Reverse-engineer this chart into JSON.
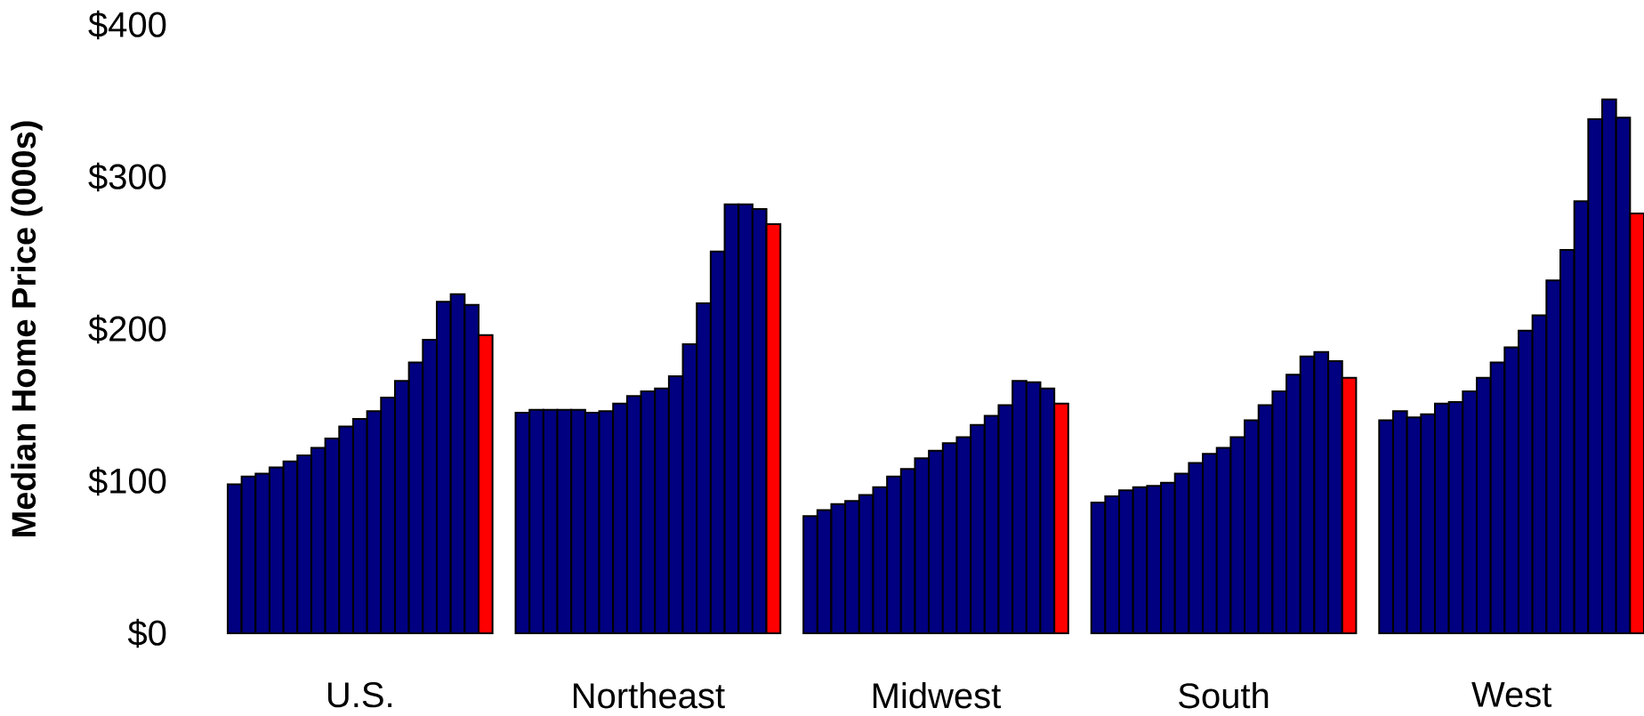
{
  "chart_data": {
    "type": "bar",
    "ylabel": "Median Home Price (000s)",
    "categories": [
      "U.S.",
      "Northeast",
      "Midwest",
      "South",
      "West"
    ],
    "ylim": [
      0,
      400
    ],
    "yticks": [
      {
        "value": 0,
        "label": "$0"
      },
      {
        "value": 100,
        "label": "$100"
      },
      {
        "value": 200,
        "label": "$200"
      },
      {
        "value": 300,
        "label": "$300"
      },
      {
        "value": 400,
        "label": "$400"
      }
    ],
    "series": [
      {
        "color": "#000080",
        "values": [
          98,
          145,
          77,
          86,
          140
        ]
      },
      {
        "color": "#000080",
        "values": [
          103,
          147,
          81,
          90,
          146
        ]
      },
      {
        "color": "#000080",
        "values": [
          105,
          147,
          85,
          94,
          142
        ]
      },
      {
        "color": "#000080",
        "values": [
          109,
          147,
          87,
          96,
          144
        ]
      },
      {
        "color": "#000080",
        "values": [
          113,
          147,
          91,
          97,
          151
        ]
      },
      {
        "color": "#000080",
        "values": [
          117,
          145,
          96,
          99,
          152
        ]
      },
      {
        "color": "#000080",
        "values": [
          122,
          146,
          103,
          105,
          159
        ]
      },
      {
        "color": "#000080",
        "values": [
          128,
          151,
          108,
          112,
          168
        ]
      },
      {
        "color": "#000080",
        "values": [
          136,
          156,
          115,
          118,
          178
        ]
      },
      {
        "color": "#000080",
        "values": [
          141,
          159,
          120,
          122,
          188
        ]
      },
      {
        "color": "#000080",
        "values": [
          146,
          161,
          125,
          129,
          199
        ]
      },
      {
        "color": "#000080",
        "values": [
          155,
          169,
          129,
          140,
          209
        ]
      },
      {
        "color": "#000080",
        "values": [
          166,
          190,
          137,
          150,
          232
        ]
      },
      {
        "color": "#000080",
        "values": [
          178,
          217,
          143,
          159,
          252
        ]
      },
      {
        "color": "#000080",
        "values": [
          193,
          251,
          150,
          170,
          284
        ]
      },
      {
        "color": "#000080",
        "values": [
          218,
          282,
          166,
          182,
          338
        ]
      },
      {
        "color": "#000080",
        "values": [
          223,
          282,
          165,
          185,
          351
        ]
      },
      {
        "color": "#000080",
        "values": [
          216,
          279,
          161,
          179,
          339
        ]
      },
      {
        "color": "#ff0000",
        "values": [
          196,
          269,
          151,
          168,
          276
        ]
      }
    ]
  }
}
